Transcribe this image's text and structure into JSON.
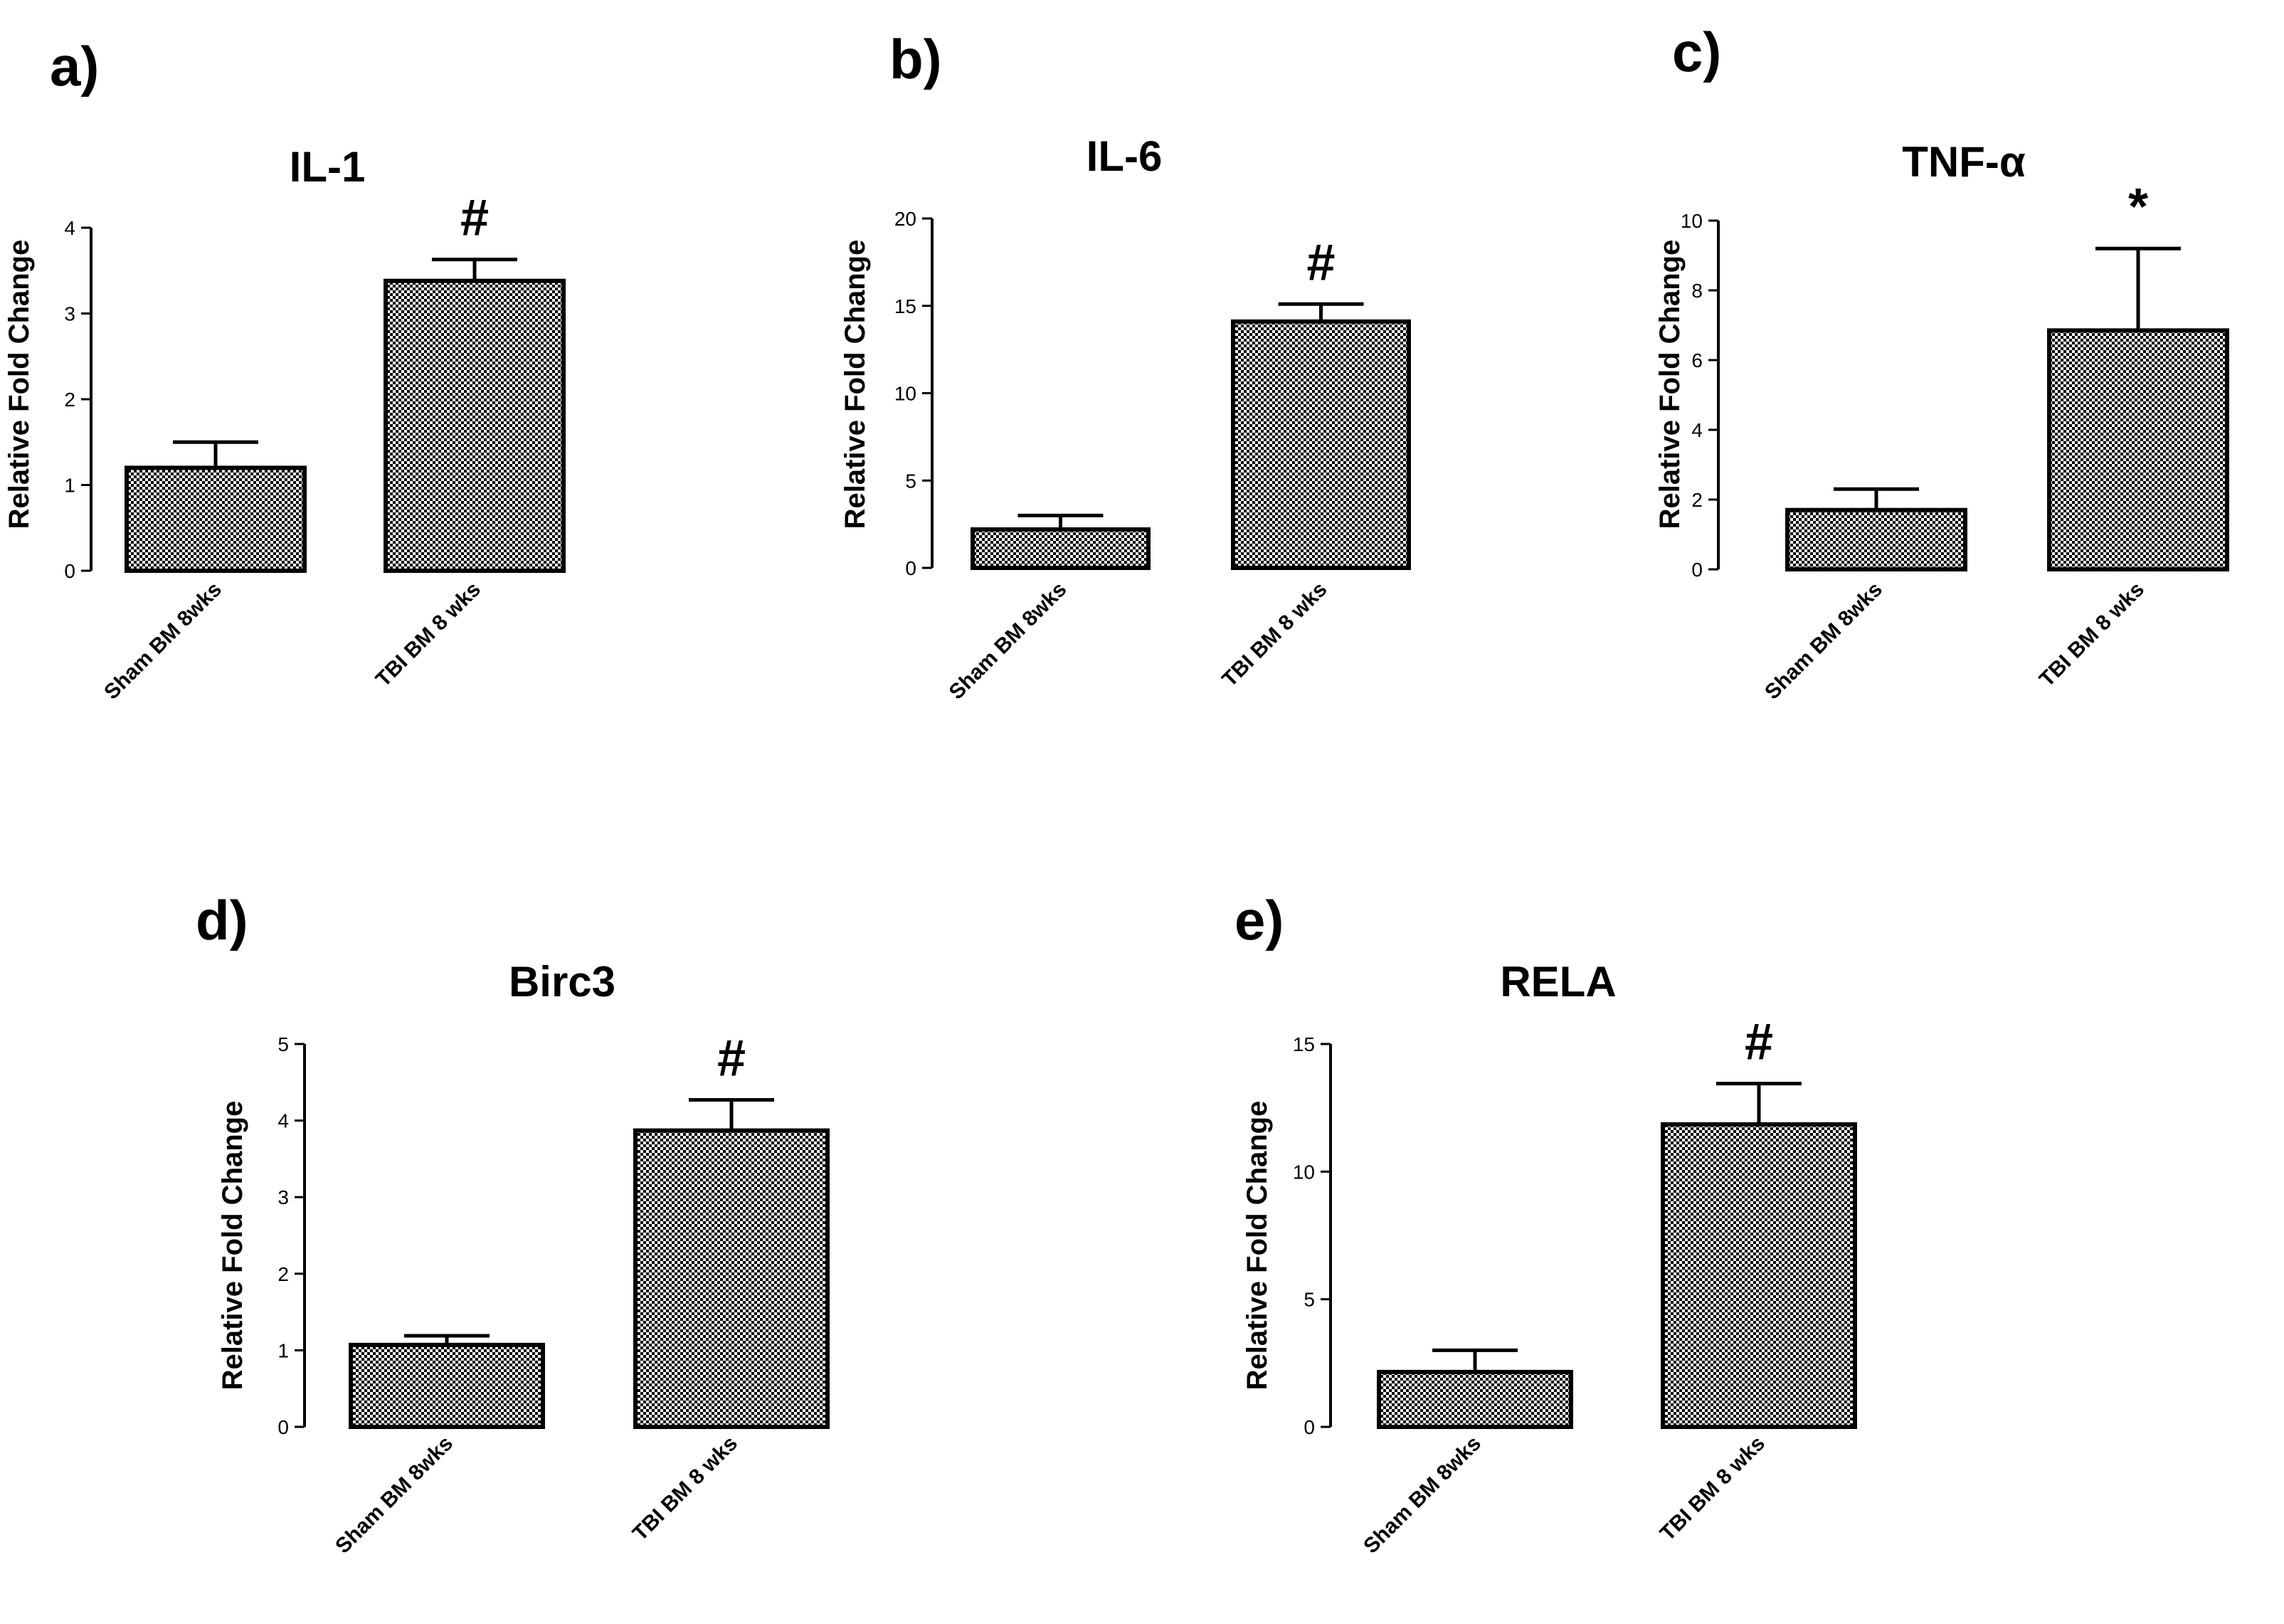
{
  "figure": {
    "colors": {
      "bar_pattern_dark": "#000000",
      "bar_pattern_light": "#ffffff",
      "axis": "#000000"
    }
  },
  "chart_data": [
    {
      "panel": "a)",
      "type": "bar",
      "title": "IL-1",
      "ylabel": "Relative Fold Change",
      "xlabel": "",
      "ylim": [
        0,
        4
      ],
      "yticks": [
        "0",
        "1",
        "2",
        "3",
        "4"
      ],
      "categories": [
        "Sham BM 8wks",
        "TBI BM 8 wks"
      ],
      "values": [
        1.2,
        3.38
      ],
      "error": [
        0.3,
        0.25
      ],
      "significance": [
        "",
        "#"
      ]
    },
    {
      "panel": "b)",
      "type": "bar",
      "title": "IL-6",
      "ylabel": "Relative Fold Change",
      "xlabel": "",
      "ylim": [
        0,
        20
      ],
      "yticks": [
        "0",
        "5",
        "10",
        "15",
        "20"
      ],
      "categories": [
        "Sham BM 8wks",
        "TBI BM 8 wks"
      ],
      "values": [
        2.2,
        14.1
      ],
      "error": [
        0.8,
        1.0
      ],
      "significance": [
        "",
        "#"
      ]
    },
    {
      "panel": "c)",
      "type": "bar",
      "title": "TNF-α",
      "ylabel": "Relative Fold Change",
      "xlabel": "",
      "ylim": [
        0,
        10
      ],
      "yticks": [
        "0",
        "2",
        "4",
        "6",
        "8",
        "10"
      ],
      "categories": [
        "Sham BM 8wks",
        "TBI BM 8 wks"
      ],
      "values": [
        1.7,
        6.85
      ],
      "error": [
        0.6,
        2.35
      ],
      "significance": [
        "",
        "*"
      ]
    },
    {
      "panel": "d)",
      "type": "bar",
      "title": "Birc3",
      "ylabel": "Relative Fold Change",
      "xlabel": "",
      "ylim": [
        0,
        5
      ],
      "yticks": [
        "0",
        "1",
        "2",
        "3",
        "4",
        "5"
      ],
      "categories": [
        "Sham BM 8wks",
        "TBI BM 8 wks"
      ],
      "values": [
        1.07,
        3.87
      ],
      "error": [
        0.12,
        0.4
      ],
      "significance": [
        "",
        "#"
      ]
    },
    {
      "panel": "e)",
      "type": "bar",
      "title": "RELA",
      "ylabel": "Relative Fold Change",
      "xlabel": "",
      "ylim": [
        0,
        15
      ],
      "yticks": [
        "0",
        "5",
        "10",
        "15"
      ],
      "categories": [
        "Sham BM 8wks",
        "TBI BM 8 wks"
      ],
      "values": [
        2.15,
        11.85
      ],
      "error": [
        0.85,
        1.6
      ],
      "significance": [
        "",
        "#"
      ]
    }
  ]
}
